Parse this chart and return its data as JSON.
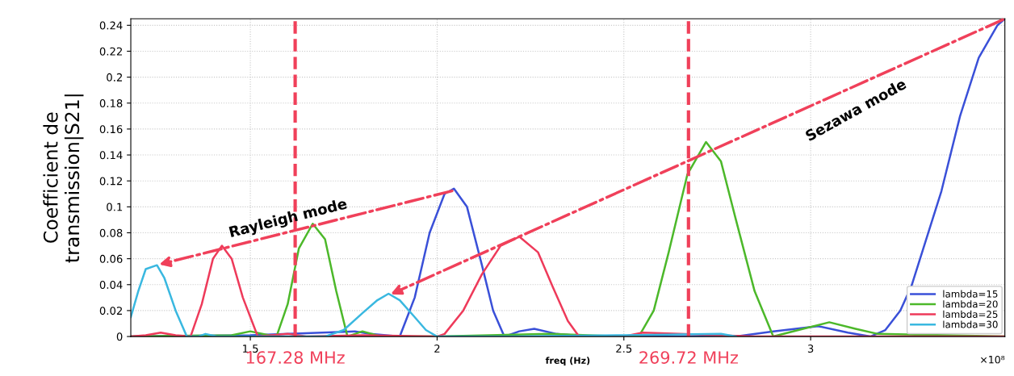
{
  "chart_data": {
    "type": "line",
    "xlabel": "freq (Hz)",
    "ylabel": "Coefficient de\ntransmission|S21|",
    "xlim": [
      1.18,
      3.52
    ],
    "xticks": [
      1.5,
      2,
      2.5,
      3
    ],
    "ylim": [
      0,
      0.245
    ],
    "yticks": [
      0,
      0.02,
      0.04,
      0.06,
      0.08,
      0.1,
      0.12,
      0.14,
      0.16,
      0.18,
      0.2,
      0.22,
      0.24
    ],
    "grid": true,
    "legend": "bottom right",
    "marker": "none",
    "line_style": "solid",
    "series": [
      {
        "name": "lambda=15",
        "color": "#3a50d8",
        "x": [
          1.18,
          1.5,
          1.78,
          1.82,
          1.9,
          1.94,
          1.98,
          2.02,
          2.045,
          2.08,
          2.12,
          2.15,
          2.18,
          2.22,
          2.26,
          2.32,
          2.4,
          2.8,
          2.9,
          3.02,
          3.1,
          3.16,
          3.2,
          3.24,
          3.27,
          3.35,
          3.4,
          3.45,
          3.5,
          3.52
        ],
        "values": [
          0,
          0.001,
          0.004,
          0.002,
          0,
          0.03,
          0.08,
          0.11,
          0.114,
          0.1,
          0.055,
          0.02,
          0,
          0.004,
          0.006,
          0.002,
          0,
          0,
          0.004,
          0.008,
          0.003,
          0,
          0.005,
          0.02,
          0.039,
          0.112,
          0.17,
          0.215,
          0.24,
          0.245
        ]
      },
      {
        "name": "lambda=20",
        "color": "#4cb82a",
        "x": [
          1.18,
          1.45,
          1.5,
          1.55,
          1.57,
          1.6,
          1.63,
          1.667,
          1.7,
          1.73,
          1.76,
          1.8,
          1.85,
          2.0,
          2.3,
          2.5,
          2.54,
          2.58,
          2.62,
          2.67,
          2.72,
          2.76,
          2.8,
          2.85,
          2.9,
          2.98,
          3.05,
          3.12,
          3.18,
          3.52
        ],
        "values": [
          0,
          0.001,
          0.004,
          0.001,
          0,
          0.025,
          0.068,
          0.087,
          0.075,
          0.035,
          0,
          0.004,
          0,
          0,
          0.002,
          0,
          0,
          0.02,
          0.065,
          0.125,
          0.15,
          0.135,
          0.09,
          0.035,
          0,
          0.006,
          0.011,
          0.006,
          0.002,
          0
        ]
      },
      {
        "name": "lambda=25",
        "color": "#ee3a5a",
        "x": [
          1.18,
          1.22,
          1.26,
          1.3,
          1.34,
          1.37,
          1.4,
          1.424,
          1.45,
          1.48,
          1.52,
          1.6,
          1.65,
          1.8,
          2.0,
          2.02,
          2.07,
          2.12,
          2.17,
          2.22,
          2.27,
          2.31,
          2.35,
          2.38,
          2.5,
          2.55,
          2.65,
          2.75,
          2.85,
          3.52
        ],
        "values": [
          0,
          0.001,
          0.003,
          0.001,
          0,
          0.025,
          0.06,
          0.07,
          0.06,
          0.03,
          0,
          0.002,
          0,
          0.001,
          0,
          0.002,
          0.02,
          0.048,
          0.07,
          0.077,
          0.065,
          0.038,
          0.012,
          0,
          0,
          0.003,
          0.002,
          0.001,
          0,
          0
        ]
      },
      {
        "name": "lambda=30",
        "color": "#3ab8e0",
        "x": [
          1.18,
          1.2,
          1.22,
          1.25,
          1.27,
          1.3,
          1.33,
          1.36,
          1.38,
          1.41,
          1.5,
          1.6,
          1.7,
          1.75,
          1.8,
          1.84,
          1.87,
          1.9,
          1.94,
          1.97,
          2.0,
          2.2,
          2.5,
          2.76,
          2.8
        ],
        "values": [
          0.015,
          0.035,
          0.052,
          0.055,
          0.045,
          0.02,
          0,
          0,
          0.002,
          0,
          0,
          0,
          0,
          0.005,
          0.018,
          0.028,
          0.033,
          0.028,
          0.015,
          0.005,
          0,
          0,
          0.001,
          0.002,
          0
        ]
      }
    ],
    "ref_lines": [
      {
        "axis": "x",
        "value": 1.62,
        "label": "167.28 MHz",
        "color": "#f0405a",
        "line_style": "dashed"
      },
      {
        "axis": "x",
        "value": 2.673,
        "label": "269.72 MHz",
        "color": "#f0405a",
        "line_style": "dashed"
      }
    ],
    "annotations": [
      "Rayleigh mode",
      "Sezawa mode",
      "×10⁸"
    ]
  }
}
